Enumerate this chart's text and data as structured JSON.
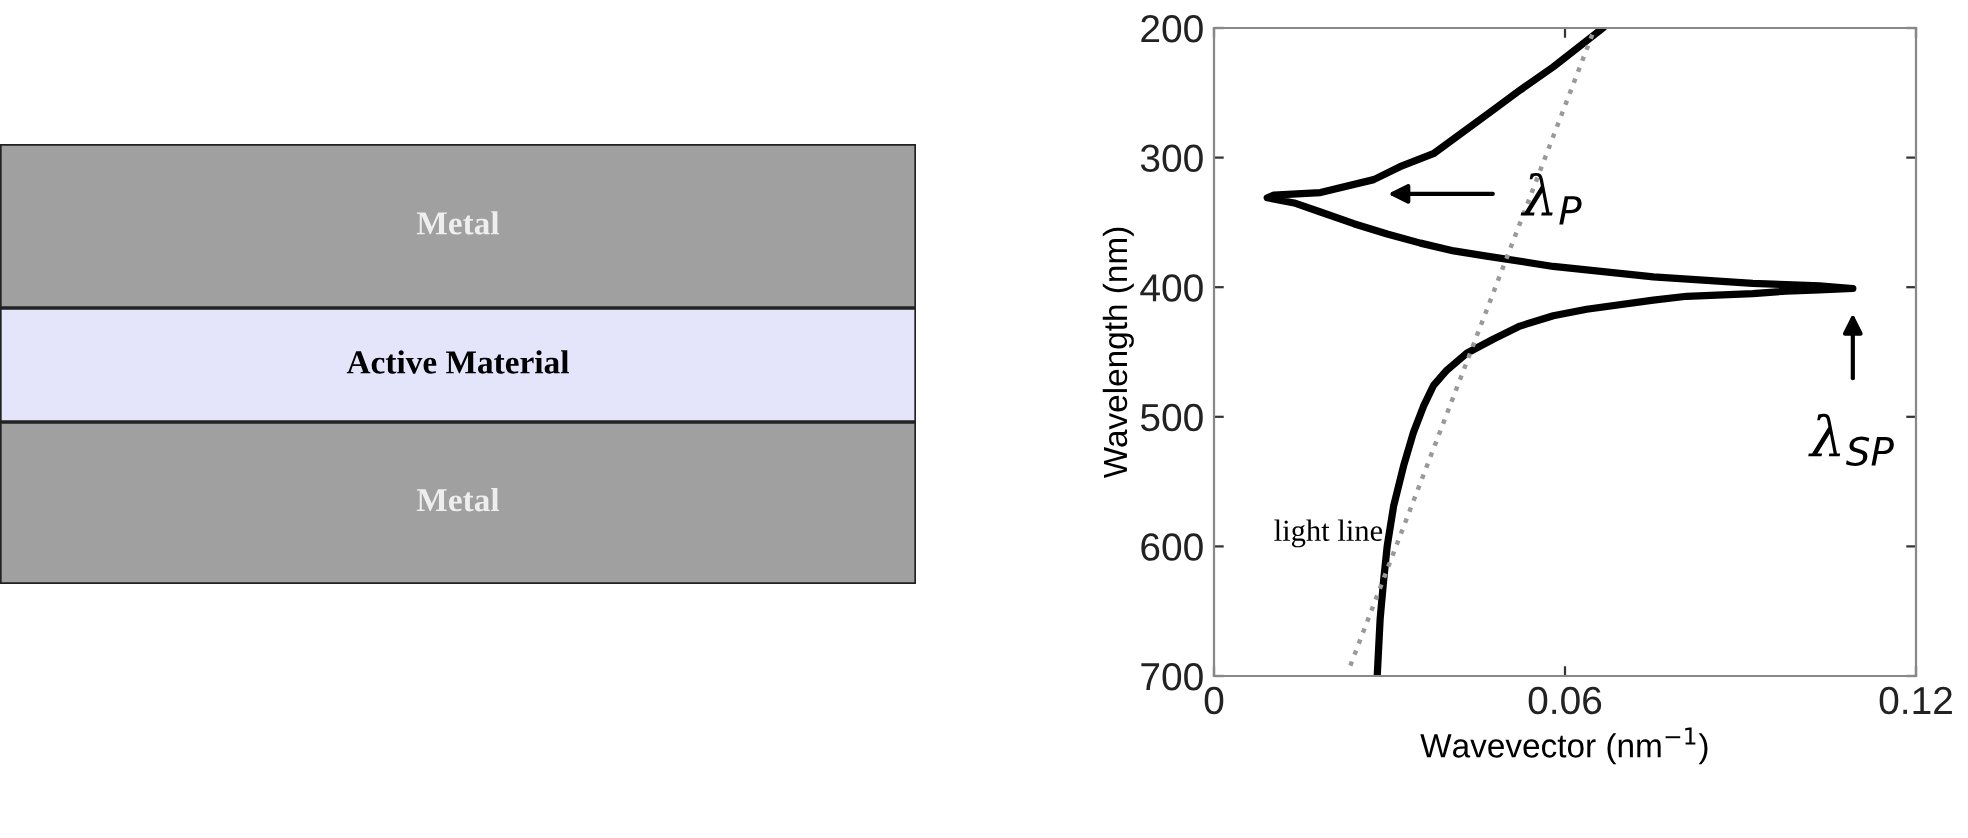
{
  "chart_data": [
    {
      "type": "other",
      "annotations": [
        "Metal",
        "Active Material",
        "Metal"
      ]
    },
    {
      "type": "line",
      "xlabel": "Wavevector (nm$^{−1}$)",
      "ylabel": "Wavelength (nm)",
      "xlim": [
        0,
        0.12
      ],
      "xticks": [
        0,
        0.06,
        0.12
      ],
      "ylim": [
        700,
        200
      ],
      "yticks": [
        200,
        300,
        400,
        500,
        600,
        700
      ],
      "grid": false,
      "series": [
        {
          "color": "#000000",
          "line_style": "solid",
          "x": [
            0.0665,
            0.058,
            0.0523,
            0.0478,
            0.0375,
            0.0318,
            0.0273,
            0.0182,
            0.0102,
            0.0091,
            0.0137,
            0.0182,
            0.0239,
            0.0296,
            0.0353,
            0.041,
            0.0466,
            0.058,
            0.0751,
            0.0921,
            0.0978,
            0.1035,
            0.1092,
            0.1035,
            0.0978,
            0.0921,
            0.0808,
            0.0751,
            0.0637,
            0.058,
            0.0523,
            0.0478,
            0.0432,
            0.0398,
            0.0375,
            0.0358,
            0.0341,
            0.0324,
            0.0307,
            0.0296,
            0.029,
            0.0284,
            0.0279
          ],
          "values": [
            200,
            230,
            248,
            263,
            297,
            307,
            317,
            327,
            329,
            331,
            335,
            342,
            351,
            359,
            366,
            372,
            376,
            384,
            392,
            397,
            398,
            399,
            401,
            402,
            403,
            405,
            407,
            410,
            417,
            422,
            430,
            440,
            451,
            464,
            476,
            492,
            512,
            538,
            569,
            600,
            626,
            656,
            700
          ]
        },
        {
          "color": "#999999",
          "line_style": "dotted",
          "x": [
            0.0233,
            0.0651
          ],
          "values": [
            692,
            200
          ]
        }
      ],
      "annotations": [
        "λ$_{P}$",
        {
          "text": "λ$_{SP}$",
          "x": 0.1092,
          "y": 401
        },
        "light line"
      ]
    }
  ]
}
